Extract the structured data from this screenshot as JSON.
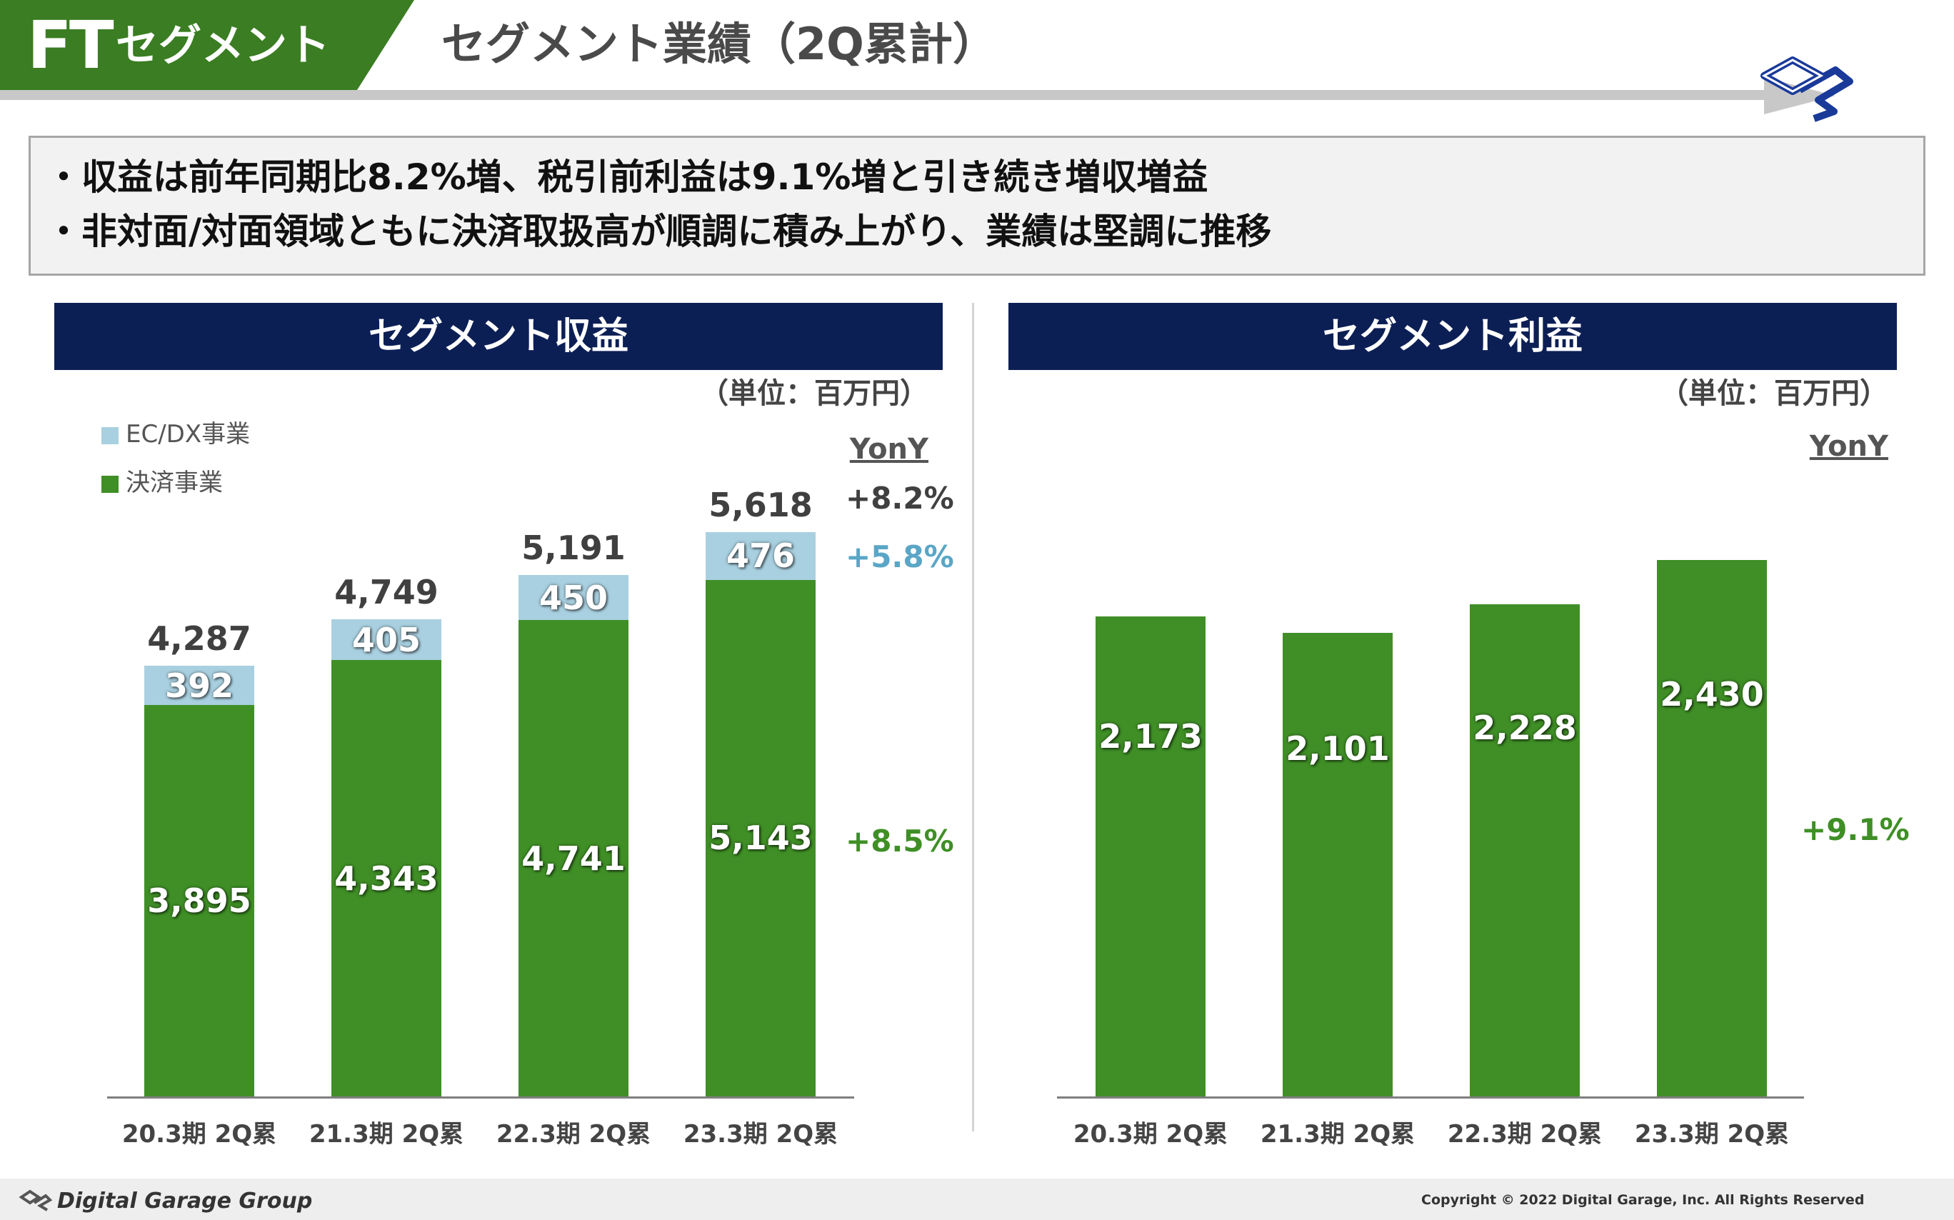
{
  "header": {
    "tag_abbr": "FT",
    "tag_label": "セグメント",
    "title": "セグメント業績（2Q累計）"
  },
  "summary": {
    "bullets": [
      "・収益は前年同期比8.2%増、税引前利益は9.1%増と引き続き増収増益",
      "・非対面/対面領域ともに決済取扱高が順調に積み上がり、業績は堅調に推移"
    ]
  },
  "revenue_panel": {
    "heading": "セグメント収益",
    "unit": "（単位：百万円）",
    "yony_label": "YonY"
  },
  "profit_panel": {
    "heading": "セグメント利益",
    "unit": "（単位：百万円）",
    "yony_label": "YonY"
  },
  "colors": {
    "green": "#3f8f26",
    "light_blue": "#a9d0e0",
    "navy": "#0c1f55",
    "header_green": "#3a7d22"
  },
  "chart_data": [
    {
      "type": "bar",
      "stacked": true,
      "title": "セグメント収益",
      "categories": [
        "20.3期 2Q累",
        "21.3期 2Q累",
        "22.3期 2Q累",
        "23.3期 2Q累"
      ],
      "series": [
        {
          "name": "決済事業",
          "values": [
            3895,
            4343,
            4741,
            5143
          ],
          "color": "#3f8f26"
        },
        {
          "name": "EC/DX事業",
          "values": [
            392,
            405,
            450,
            476
          ],
          "color": "#a9d0e0"
        }
      ],
      "totals": [
        4287,
        4749,
        5191,
        5618
      ],
      "value_labels": {
        "決済事業": [
          "3,895",
          "4,343",
          "4,741",
          "5,143"
        ],
        "EC/DX事業": [
          "392",
          "405",
          "450",
          "476"
        ],
        "totals": [
          "4,287",
          "4,749",
          "5,191",
          "5,618"
        ]
      },
      "ylim": [
        0,
        5618
      ],
      "growth": {
        "total": "+8.2%",
        "EC/DX事業": "+5.8%",
        "決済事業": "+8.5%"
      },
      "legend": [
        "EC/DX事業",
        "決済事業"
      ],
      "legend_position": "top-left",
      "grid": false
    },
    {
      "type": "bar",
      "title": "セグメント利益",
      "categories": [
        "20.3期 2Q累",
        "21.3期 2Q累",
        "22.3期 2Q累",
        "23.3期 2Q累"
      ],
      "series": [
        {
          "values": [
            2173,
            2101,
            2228,
            2430
          ],
          "color": "#3f8f26"
        }
      ],
      "value_labels": [
        "2,173",
        "2,101",
        "2,228",
        "2,430"
      ],
      "ylim": [
        0,
        2430
      ],
      "growth": "+9.1%",
      "grid": false
    }
  ],
  "footer": {
    "company": "Digital Garage Group",
    "copyright": "Copyright © 2022 Digital Garage, Inc. All Rights Reserved"
  }
}
